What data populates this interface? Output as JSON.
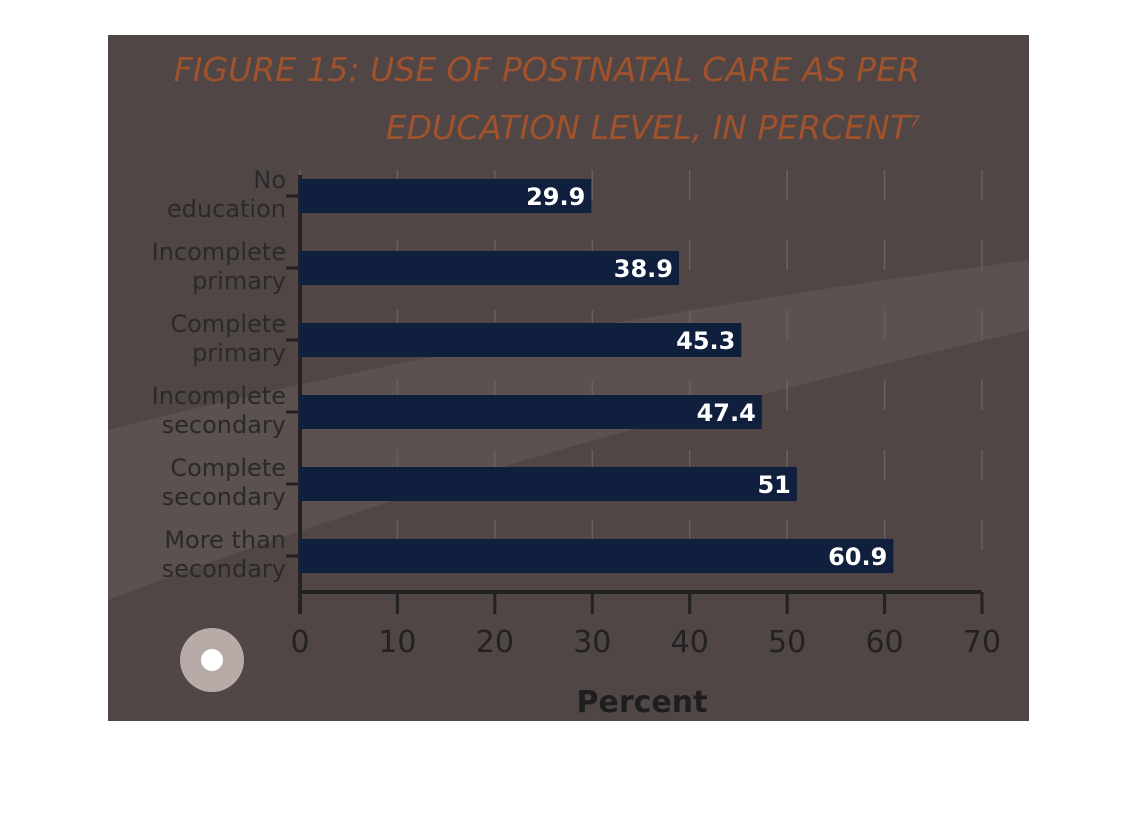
{
  "chart_data": {
    "type": "barh",
    "title": "FIGURE 15: USE OF POSTNATAL CARE AS PER\nEDUCATION LEVEL, IN PERCENT",
    "footnote_mark": "7",
    "x_label": "Percent",
    "categories": [
      "No\neducation",
      "Incomplete\nprimary",
      "Complete\nprimary",
      "Incomplete\nsecondary",
      "Complete\nsecondary",
      "More than\nsecondary"
    ],
    "values": [
      29.9,
      38.9,
      45.3,
      47.4,
      51,
      60.9
    ],
    "color": "#0f1f3d",
    "xlim": [
      0,
      70
    ],
    "xticks": [
      0,
      10,
      20,
      30,
      40,
      50,
      60,
      70
    ],
    "grid": true
  }
}
